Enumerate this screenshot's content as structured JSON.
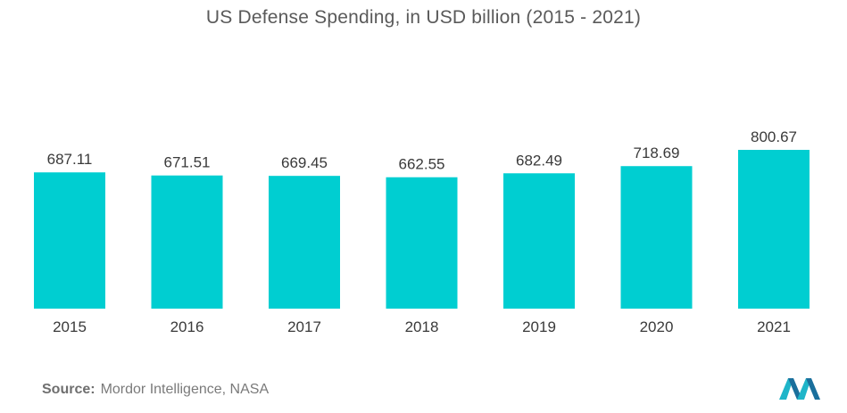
{
  "chart_data": {
    "type": "bar",
    "title": "US Defense Spending, in USD billion (2015 - 2021)",
    "categories": [
      "2015",
      "2016",
      "2017",
      "2018",
      "2019",
      "2020",
      "2021"
    ],
    "values": [
      687.11,
      671.51,
      669.45,
      662.55,
      682.49,
      718.69,
      800.67
    ],
    "value_labels": [
      "687.11",
      "671.51",
      "669.45",
      "662.55",
      "682.49",
      "718.69",
      "800.67"
    ],
    "xlabel": "",
    "ylabel": "",
    "ylim": [
      0,
      800.67
    ],
    "grid": false,
    "bar_color": "#00CED1"
  },
  "source": {
    "label": "Source:",
    "text": "Mordor Intelligence, NASA"
  },
  "logo": {
    "icon": "mordor-intelligence-logo-icon",
    "colors": [
      "#1fb5c9",
      "#1a6f9c"
    ]
  }
}
